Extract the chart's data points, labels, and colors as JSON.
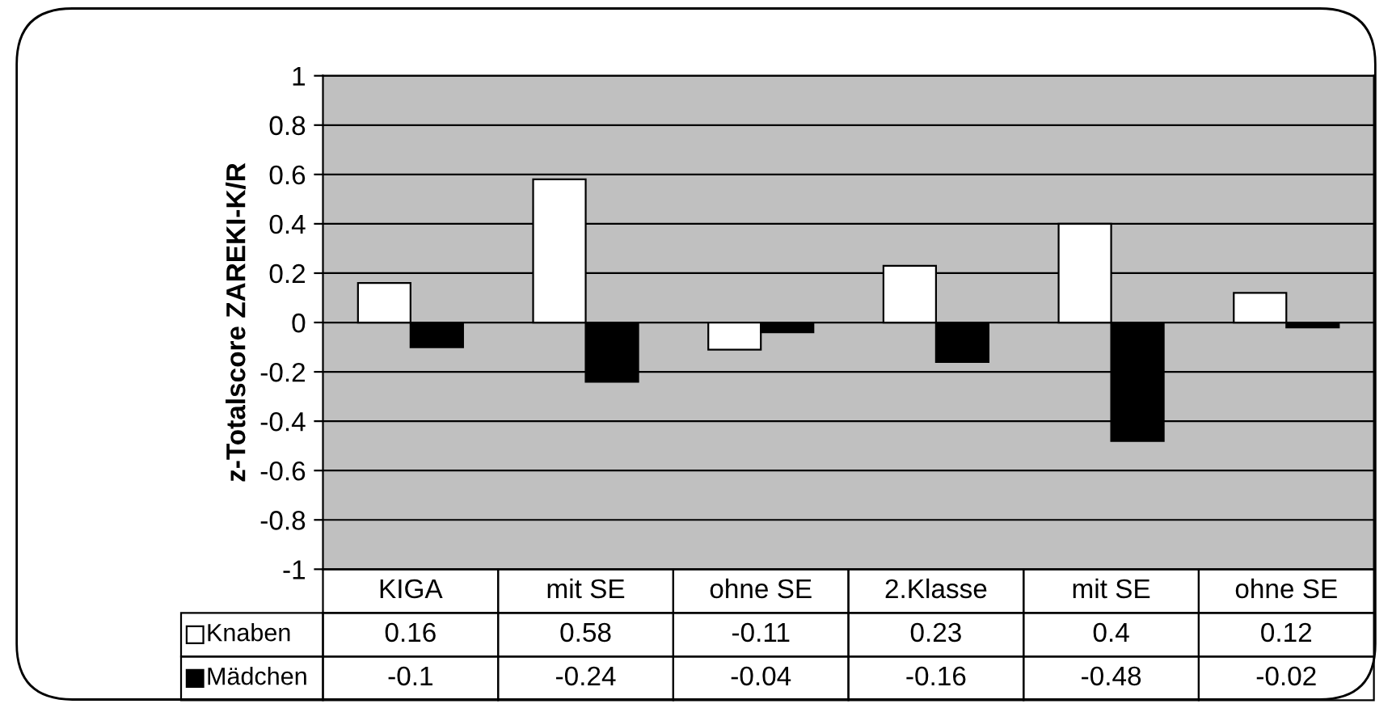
{
  "chart_data": {
    "type": "bar",
    "ylabel": "z-Totalscore ZAREKI-K/R",
    "categories": [
      "KIGA",
      "mit SE",
      "ohne SE",
      "2.Klasse",
      "mit SE",
      "ohne SE"
    ],
    "series": [
      {
        "name": "Knaben",
        "color": "#ffffff",
        "values": [
          0.16,
          0.58,
          -0.11,
          0.23,
          0.4,
          0.12
        ]
      },
      {
        "name": "Mädchen",
        "color": "#000000",
        "values": [
          -0.1,
          -0.24,
          -0.04,
          -0.16,
          -0.48,
          -0.02
        ]
      }
    ],
    "ylim": [
      -1,
      1
    ],
    "yticks": [
      -1,
      -0.8,
      -0.6,
      -0.4,
      -0.2,
      0,
      0.2,
      0.4,
      0.6,
      0.8,
      1
    ],
    "grid": "y",
    "legend": "bottom",
    "data_labels": true
  }
}
